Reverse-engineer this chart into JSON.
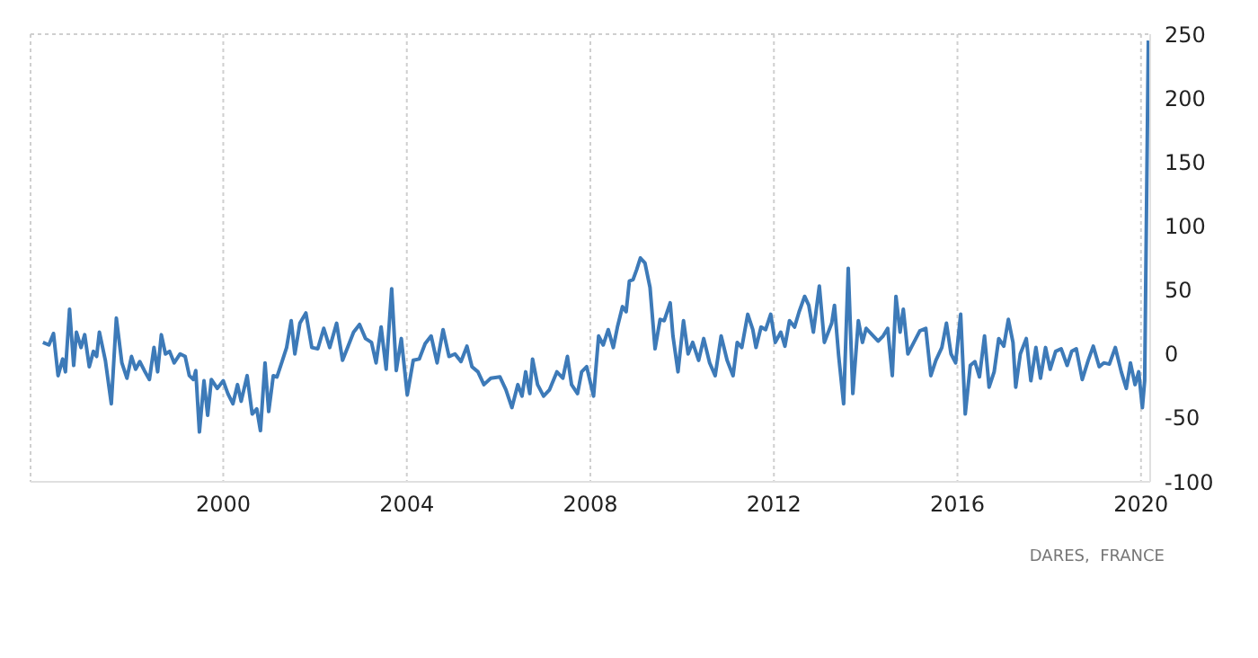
{
  "chart_data": {
    "type": "line",
    "x": [
      1996.07,
      1996.2,
      1996.3,
      1996.4,
      1996.5,
      1996.56,
      1996.65,
      1996.74,
      1996.8,
      1996.9,
      1996.98,
      1997.08,
      1997.17,
      1997.24,
      1997.3,
      1997.43,
      1997.56,
      1997.67,
      1997.79,
      1997.9,
      1998.0,
      1998.09,
      1998.18,
      1998.28,
      1998.39,
      1998.49,
      1998.57,
      1998.65,
      1998.74,
      1998.83,
      1998.93,
      1999.06,
      1999.17,
      1999.26,
      1999.35,
      1999.4,
      1999.48,
      1999.58,
      1999.66,
      1999.74,
      1999.87,
      2000.0,
      2000.1,
      2000.21,
      2000.31,
      2000.39,
      2000.52,
      2000.63,
      2000.73,
      2000.81,
      2000.91,
      2000.99,
      2001.09,
      2001.17,
      2001.28,
      2001.38,
      2001.48,
      2001.56,
      2001.67,
      2001.8,
      2001.93,
      2002.06,
      2002.19,
      2002.32,
      2002.47,
      2002.6,
      2002.71,
      2002.84,
      2002.97,
      2003.1,
      2003.23,
      2003.33,
      2003.44,
      2003.55,
      2003.67,
      2003.77,
      2003.88,
      2004.01,
      2004.14,
      2004.27,
      2004.4,
      2004.53,
      2004.66,
      2004.79,
      2004.92,
      2005.05,
      2005.18,
      2005.31,
      2005.42,
      2005.55,
      2005.68,
      2005.83,
      2006.03,
      2006.16,
      2006.29,
      2006.42,
      2006.51,
      2006.59,
      2006.68,
      2006.74,
      2006.85,
      2006.98,
      2007.11,
      2007.27,
      2007.4,
      2007.5,
      2007.59,
      2007.72,
      2007.81,
      2007.92,
      2008.07,
      2008.18,
      2008.28,
      2008.39,
      2008.5,
      2008.59,
      2008.7,
      2008.78,
      2008.85,
      2008.93,
      2009.01,
      2009.09,
      2009.19,
      2009.3,
      2009.41,
      2009.52,
      2009.61,
      2009.74,
      2009.8,
      2009.91,
      2010.03,
      2010.13,
      2010.23,
      2010.36,
      2010.47,
      2010.6,
      2010.72,
      2010.85,
      2010.98,
      2011.11,
      2011.2,
      2011.3,
      2011.43,
      2011.54,
      2011.61,
      2011.72,
      2011.82,
      2011.93,
      2012.03,
      2012.15,
      2012.24,
      2012.34,
      2012.45,
      2012.55,
      2012.67,
      2012.76,
      2012.86,
      2012.99,
      2013.1,
      2013.26,
      2013.32,
      2013.41,
      2013.52,
      2013.62,
      2013.72,
      2013.84,
      2013.93,
      2014.01,
      2014.14,
      2014.27,
      2014.38,
      2014.48,
      2014.58,
      2014.66,
      2014.75,
      2014.82,
      2014.92,
      2015.05,
      2015.18,
      2015.31,
      2015.42,
      2015.53,
      2015.66,
      2015.76,
      2015.86,
      2015.96,
      2016.07,
      2016.17,
      2016.28,
      2016.38,
      2016.48,
      2016.59,
      2016.69,
      2016.8,
      2016.9,
      2017.01,
      2017.11,
      2017.21,
      2017.27,
      2017.37,
      2017.5,
      2017.6,
      2017.71,
      2017.81,
      2017.92,
      2018.02,
      2018.14,
      2018.26,
      2018.39,
      2018.49,
      2018.59,
      2018.72,
      2018.85,
      2018.96,
      2019.09,
      2019.19,
      2019.31,
      2019.44,
      2019.57,
      2019.68,
      2019.77,
      2019.87,
      2019.95,
      2020.03,
      2020.08,
      2020.16
    ],
    "series": [
      {
        "color": "#3d7ab8",
        "values": [
          9,
          7,
          16,
          -17,
          -4,
          -14,
          35,
          -9,
          17,
          5,
          15,
          -10,
          2,
          -2,
          17,
          -5,
          -39,
          28,
          -7,
          -19,
          -2,
          -12,
          -6,
          -13,
          -20,
          5,
          -14,
          15,
          0,
          2,
          -7,
          0,
          -2,
          -17,
          -20,
          -13,
          -61,
          -21,
          -48,
          -20,
          -27,
          -21,
          -31,
          -39,
          -24,
          -37,
          -17,
          -47,
          -43,
          -60,
          -7,
          -45,
          -17,
          -18,
          -6,
          5,
          26,
          0,
          24,
          32,
          5,
          4,
          20,
          5,
          24,
          -5,
          5,
          17,
          23,
          12,
          9,
          -7,
          21,
          -12,
          51,
          -13,
          12,
          -32,
          -5,
          -4,
          8,
          14,
          -7,
          19,
          -2,
          0,
          -6,
          6,
          -10,
          -14,
          -24,
          -19,
          -18,
          -28,
          -42,
          -24,
          -33,
          -14,
          -31,
          -4,
          -24,
          -33,
          -28,
          -14,
          -19,
          -2,
          -24,
          -31,
          -14,
          -10,
          -33,
          14,
          7,
          19,
          5,
          21,
          37,
          33,
          57,
          58,
          66,
          75,
          71,
          52,
          4,
          27,
          26,
          40,
          14,
          -14,
          26,
          0,
          9,
          -5,
          12,
          -7,
          -17,
          14,
          -5,
          -17,
          9,
          5,
          31,
          19,
          5,
          21,
          19,
          31,
          9,
          17,
          6,
          26,
          21,
          33,
          45,
          38,
          17,
          53,
          9,
          24,
          38,
          -1,
          -39,
          67,
          -31,
          26,
          9,
          20,
          15,
          10,
          14,
          20,
          -17,
          45,
          17,
          35,
          0,
          9,
          18,
          20,
          -17,
          -5,
          5,
          24,
          0,
          -7,
          31,
          -47,
          -9,
          -6,
          -18,
          14,
          -26,
          -14,
          12,
          6,
          27,
          9,
          -26,
          0,
          12,
          -21,
          5,
          -19,
          5,
          -12,
          2,
          4,
          -9,
          2,
          4,
          -20,
          -5,
          6,
          -10,
          -7,
          -8,
          5,
          -14,
          -27,
          -7,
          -24,
          -14,
          -42,
          -21,
          245
        ]
      }
    ],
    "xlim": [
      1995.8,
      2020.2
    ],
    "xticks": [
      2000,
      2004,
      2008,
      2012,
      2016,
      2020
    ],
    "ylim": [
      -100,
      250
    ],
    "yticks": [
      -100,
      -50,
      0,
      50,
      100,
      150,
      200,
      250
    ],
    "grid": true,
    "legend": false,
    "marker": "none",
    "line_style": "solid",
    "annotations": [
      "DARES,  FRANCE"
    ]
  }
}
